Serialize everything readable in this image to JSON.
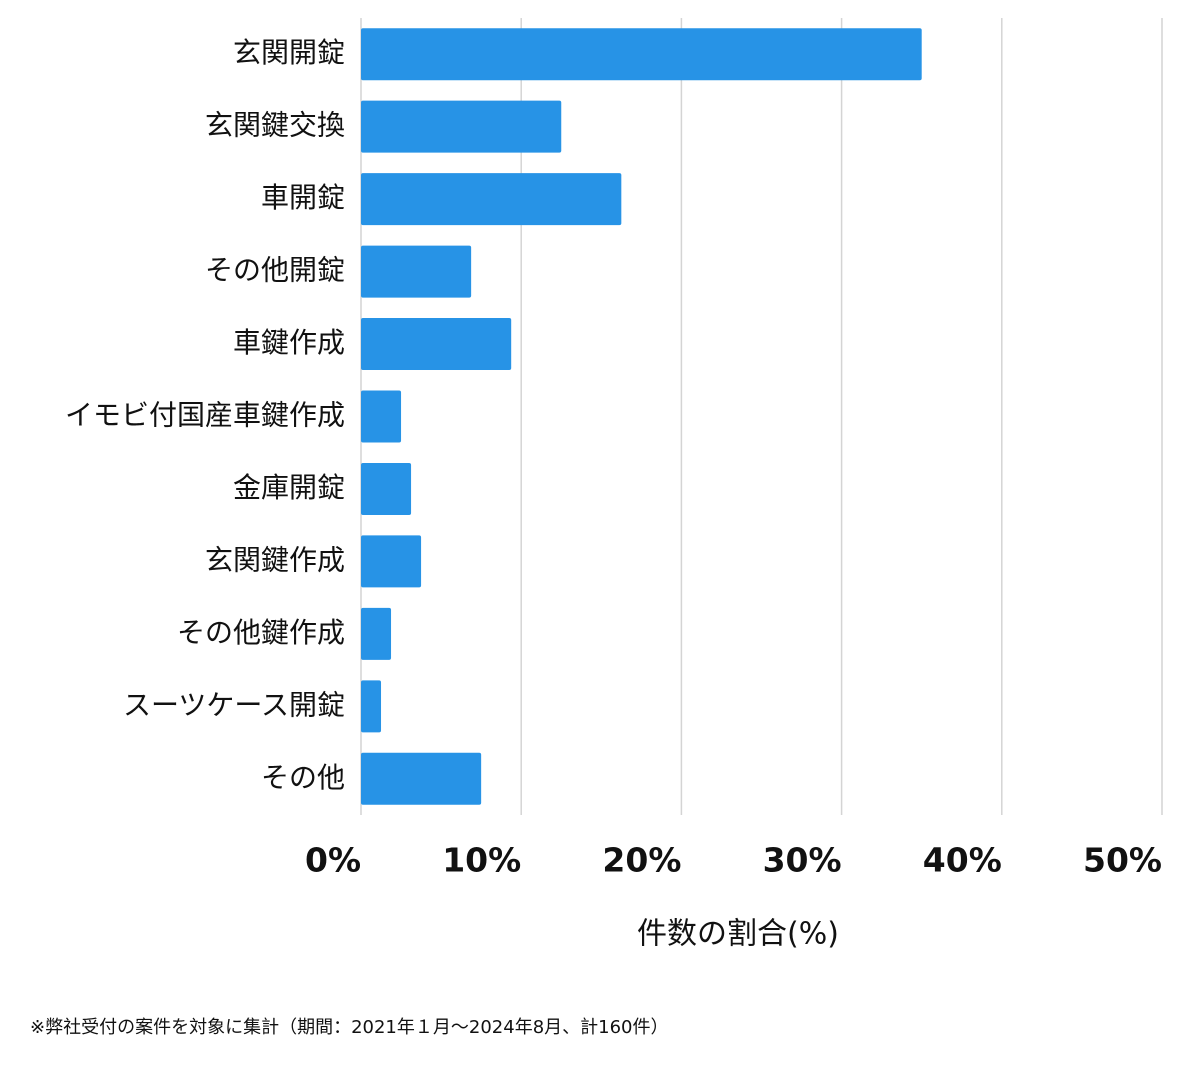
{
  "chart_data": {
    "type": "bar",
    "orientation": "horizontal",
    "categories": [
      "玄関開錠",
      "玄関鍵交換",
      "車開錠",
      "その他開錠",
      "車鍵作成",
      "イモビ付国産車鍵作成",
      "金庫開錠",
      "玄関鍵作成",
      "その他鍵作成",
      "スーツケース開錠",
      "その他"
    ],
    "values": [
      35,
      12.5,
      16.25,
      6.875,
      9.375,
      2.5,
      3.125,
      3.75,
      1.875,
      1.25,
      7.5
    ],
    "color": "#2793e6",
    "xlim": [
      0,
      50
    ],
    "xticks": [
      {
        "value": 0,
        "label": "0%"
      },
      {
        "value": 10,
        "label": "10%"
      },
      {
        "value": 20,
        "label": "20%"
      },
      {
        "value": 30,
        "label": "30%"
      },
      {
        "value": 40,
        "label": "40%"
      },
      {
        "value": 50,
        "label": "50%"
      }
    ],
    "xlabel": "件数の割合(%)",
    "grid": true,
    "footnote": "※弊社受付の案件を対象に集計（期間：2021年１月〜2024年8月、計160件）"
  }
}
